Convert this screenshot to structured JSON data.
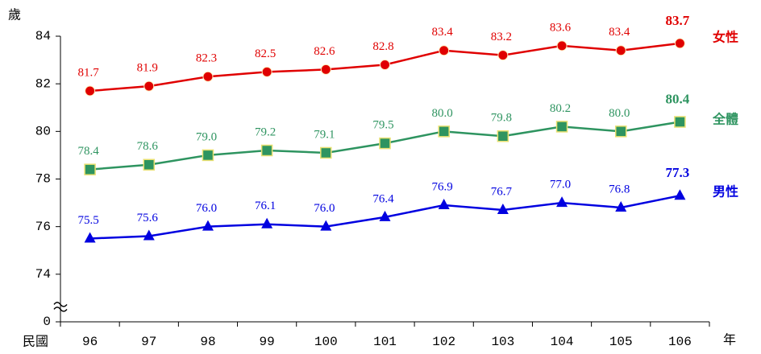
{
  "chart_data": {
    "type": "line",
    "y_label": "歲",
    "x_label_prefix": "民國",
    "x_label_suffix": "年",
    "categories": [
      "96",
      "97",
      "98",
      "99",
      "100",
      "101",
      "102",
      "103",
      "104",
      "105",
      "106"
    ],
    "series": [
      {
        "name": "女性",
        "color": "#e00000",
        "marker": "circle",
        "values": [
          81.7,
          81.9,
          82.3,
          82.5,
          82.6,
          82.8,
          83.4,
          83.2,
          83.6,
          83.4,
          83.7
        ],
        "value_labels": [
          "81.7",
          "81.9",
          "82.3",
          "82.5",
          "82.6",
          "82.8",
          "83.4",
          "83.2",
          "83.6",
          "83.4",
          "83.7"
        ]
      },
      {
        "name": "全體",
        "color": "#2e9460",
        "marker": "square",
        "values": [
          78.4,
          78.6,
          79.0,
          79.2,
          79.1,
          79.5,
          80.0,
          79.8,
          80.2,
          80.0,
          80.4
        ],
        "value_labels": [
          "78.4",
          "78.6",
          "79.0",
          "79.2",
          "79.1",
          "79.5",
          "80.0",
          "79.8",
          "80.2",
          "80.0",
          "80.4"
        ]
      },
      {
        "name": "男性",
        "color": "#0000e0",
        "marker": "triangle",
        "values": [
          75.5,
          75.6,
          76.0,
          76.1,
          76.0,
          76.4,
          76.9,
          76.7,
          77.0,
          76.8,
          77.3
        ],
        "value_labels": [
          "75.5",
          "75.6",
          "76.0",
          "76.1",
          "76.0",
          "76.4",
          "76.9",
          "76.7",
          "77.0",
          "76.8",
          "77.3"
        ]
      }
    ],
    "ylim": [
      0,
      84
    ],
    "yticks": [
      0,
      74,
      76,
      78,
      80,
      82,
      84
    ],
    "axis_break": true,
    "grid": false
  }
}
